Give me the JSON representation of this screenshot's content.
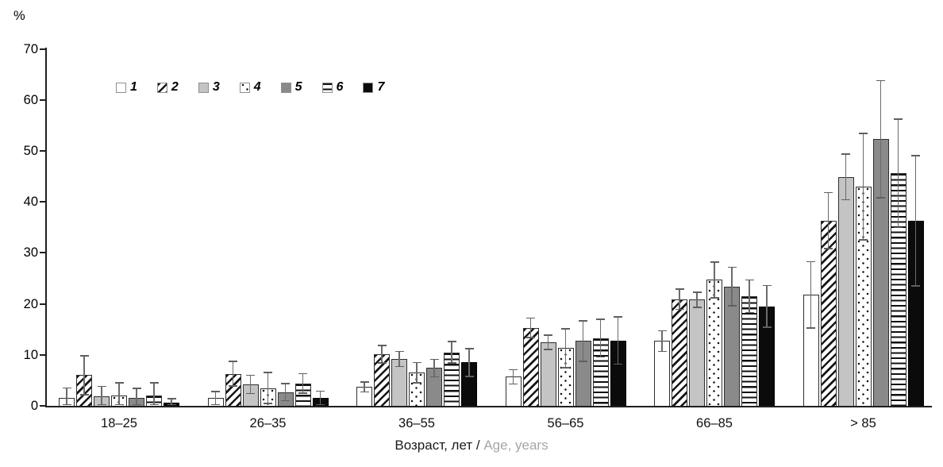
{
  "chart_data": {
    "type": "bar",
    "title": "",
    "ylabel": "%",
    "xlabel_ru": "Возраст, лет /",
    "xlabel_en": "Age, years",
    "ylim": [
      0,
      70
    ],
    "yticks": [
      0,
      10,
      20,
      30,
      40,
      50,
      60,
      70
    ],
    "grid": "off",
    "legend_position": "top-left-inside",
    "error_bars": "symmetric, with caps",
    "categories": [
      "18–25",
      "26–35",
      "36–55",
      "56–65",
      "66–85",
      "> 85"
    ],
    "series": [
      {
        "name": "1",
        "pattern": "white",
        "values": [
          1.5,
          1.5,
          3.7,
          5.7,
          12.7,
          21.8
        ],
        "errors": [
          2.0,
          1.3,
          1.0,
          1.4,
          2.0,
          6.5
        ]
      },
      {
        "name": "2",
        "pattern": "diagonal-hatch",
        "values": [
          6.0,
          6.3,
          10.1,
          15.3,
          20.9,
          36.3
        ],
        "errors": [
          3.8,
          2.4,
          1.7,
          1.9,
          2.0,
          5.5
        ]
      },
      {
        "name": "3",
        "pattern": "light-gray",
        "values": [
          1.8,
          4.2,
          9.2,
          12.5,
          20.8,
          44.9
        ],
        "errors": [
          2.0,
          1.8,
          1.5,
          1.4,
          1.5,
          4.5
        ]
      },
      {
        "name": "4",
        "pattern": "dotted",
        "values": [
          2.0,
          3.5,
          6.5,
          11.3,
          24.7,
          43.0
        ],
        "errors": [
          2.5,
          3.0,
          2.0,
          3.8,
          3.5,
          10.4
        ]
      },
      {
        "name": "5",
        "pattern": "dark-gray",
        "values": [
          1.6,
          2.7,
          7.4,
          12.7,
          23.4,
          52.3
        ],
        "errors": [
          1.8,
          1.7,
          1.7,
          4.0,
          3.8,
          11.5
        ]
      },
      {
        "name": "6",
        "pattern": "horizontal-lines",
        "values": [
          2.1,
          4.4,
          10.5,
          13.3,
          21.5,
          45.6
        ],
        "errors": [
          2.4,
          1.9,
          2.1,
          3.7,
          3.2,
          10.6
        ]
      },
      {
        "name": "7",
        "pattern": "black",
        "values": [
          0.6,
          1.5,
          8.5,
          12.8,
          19.5,
          36.3
        ],
        "errors": [
          0.8,
          1.4,
          2.7,
          4.6,
          4.1,
          12.8
        ]
      }
    ],
    "colors": {
      "bar_white": "#ffffff",
      "bar_light_gray": "#c4c4c4",
      "bar_dark_gray": "#8a8a8a",
      "bar_black": "#0b0b0b",
      "pattern_ink": "#161616",
      "error_bar": "#6b6b6b",
      "axis": "#1f1f1f",
      "xlabel_en_gray": "#a6a6a6"
    }
  }
}
